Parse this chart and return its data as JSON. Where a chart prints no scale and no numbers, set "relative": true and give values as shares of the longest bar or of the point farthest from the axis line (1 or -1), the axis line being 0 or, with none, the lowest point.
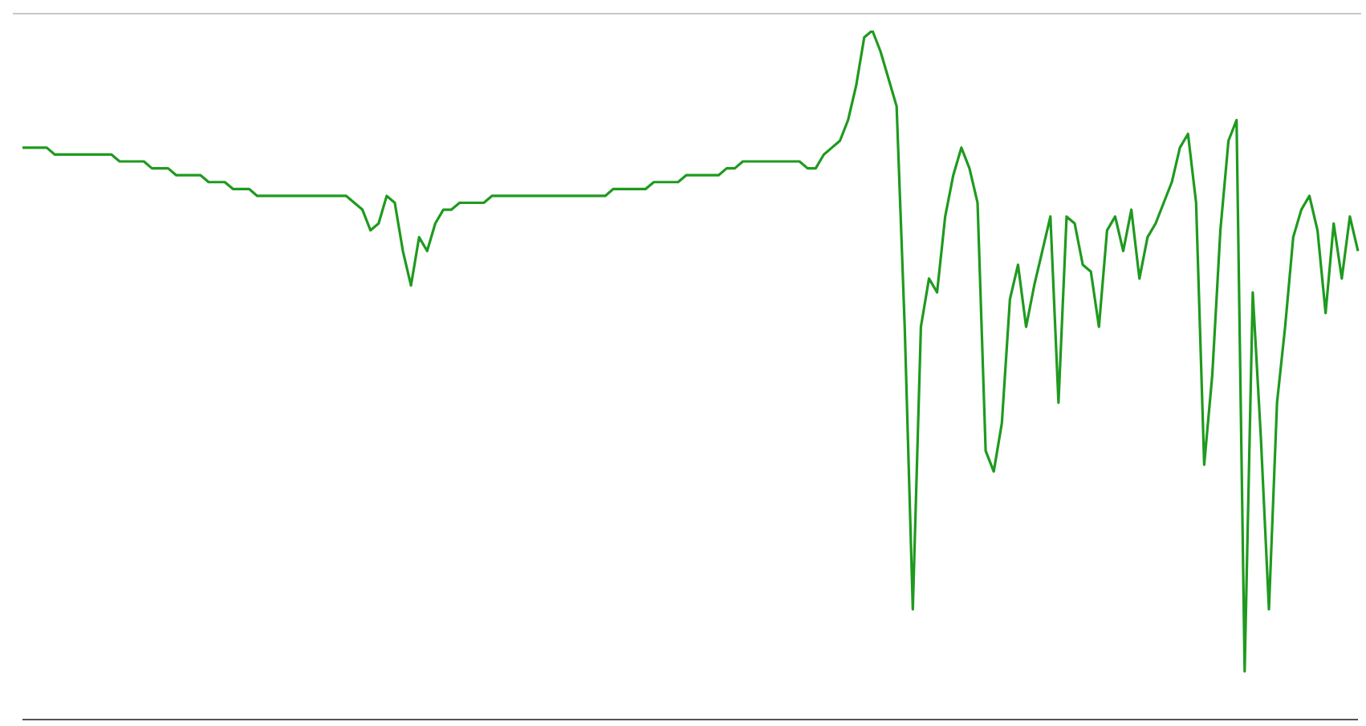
{
  "chart_data": {
    "type": "line",
    "relative": true,
    "grid": false,
    "legend": false,
    "marker": "none",
    "categories": [
      null,
      null,
      null,
      null,
      null,
      null,
      null,
      null,
      null,
      null,
      null,
      null,
      null,
      null,
      null,
      null,
      null,
      null,
      null,
      null,
      null,
      null,
      null,
      null,
      null,
      null,
      null,
      null,
      null,
      null,
      null,
      null,
      null,
      null,
      null,
      null,
      null,
      null,
      null,
      null,
      null,
      null,
      null,
      null,
      null,
      null,
      null,
      null,
      null,
      null,
      null,
      null,
      null,
      null,
      null,
      null,
      null,
      null,
      null,
      null,
      null,
      null,
      null,
      null,
      null,
      null,
      null,
      null,
      null,
      null,
      null,
      null,
      null,
      null,
      null,
      null,
      null,
      null,
      null,
      null,
      null,
      null,
      null,
      null,
      null,
      null,
      null,
      null,
      null,
      null,
      null,
      null,
      null,
      null,
      null,
      null,
      null,
      null,
      null,
      null,
      null,
      null,
      null,
      null,
      null,
      null,
      null,
      null,
      null,
      null,
      null,
      null,
      null,
      null,
      null,
      null,
      null,
      null,
      null,
      null,
      null,
      null,
      null,
      null,
      null,
      null,
      null,
      null,
      null,
      null,
      null,
      null,
      null,
      null,
      null,
      null,
      null,
      null,
      null,
      null,
      null,
      null,
      null,
      null,
      null,
      null,
      null,
      null,
      null,
      null,
      null,
      null,
      null,
      null,
      null,
      null,
      null,
      null,
      null,
      null,
      null,
      null,
      null,
      null,
      null,
      null
    ],
    "series": [
      {
        "color": "#1f9a1f",
        "values": [
          0.83,
          0.83,
          0.83,
          0.83,
          0.82,
          0.82,
          0.82,
          0.82,
          0.82,
          0.82,
          0.82,
          0.82,
          0.81,
          0.81,
          0.81,
          0.81,
          0.8,
          0.8,
          0.8,
          0.79,
          0.79,
          0.79,
          0.79,
          0.78,
          0.78,
          0.78,
          0.77,
          0.77,
          0.77,
          0.76,
          0.76,
          0.76,
          0.76,
          0.76,
          0.76,
          0.76,
          0.76,
          0.76,
          0.76,
          0.76,
          0.76,
          0.75,
          0.74,
          0.71,
          0.72,
          0.76,
          0.75,
          0.68,
          0.63,
          0.7,
          0.68,
          0.72,
          0.74,
          0.74,
          0.75,
          0.75,
          0.75,
          0.75,
          0.76,
          0.76,
          0.76,
          0.76,
          0.76,
          0.76,
          0.76,
          0.76,
          0.76,
          0.76,
          0.76,
          0.76,
          0.76,
          0.76,
          0.76,
          0.77,
          0.77,
          0.77,
          0.77,
          0.77,
          0.78,
          0.78,
          0.78,
          0.78,
          0.79,
          0.79,
          0.79,
          0.79,
          0.79,
          0.8,
          0.8,
          0.81,
          0.81,
          0.81,
          0.81,
          0.81,
          0.81,
          0.81,
          0.81,
          0.8,
          0.8,
          0.82,
          0.83,
          0.84,
          0.87,
          0.92,
          0.99,
          1,
          0.97,
          0.93,
          0.89,
          0.57,
          0.16,
          0.57,
          0.64,
          0.62,
          0.73,
          0.79,
          0.83,
          0.8,
          0.75,
          0.39,
          0.36,
          0.43,
          0.61,
          0.66,
          0.57,
          0.63,
          0.68,
          0.73,
          0.46,
          0.73,
          0.72,
          0.66,
          0.65,
          0.57,
          0.71,
          0.73,
          0.68,
          0.74,
          0.64,
          0.7,
          0.72,
          0.75,
          0.78,
          0.83,
          0.85,
          0.75,
          0.37,
          0.5,
          0.71,
          0.84,
          0.87,
          0.07,
          0.62,
          0.41,
          0.16,
          0.46,
          0.57,
          0.7,
          0.74,
          0.76,
          0.71,
          0.59,
          0.72,
          0.64,
          0.73,
          0.68
        ]
      }
    ]
  }
}
